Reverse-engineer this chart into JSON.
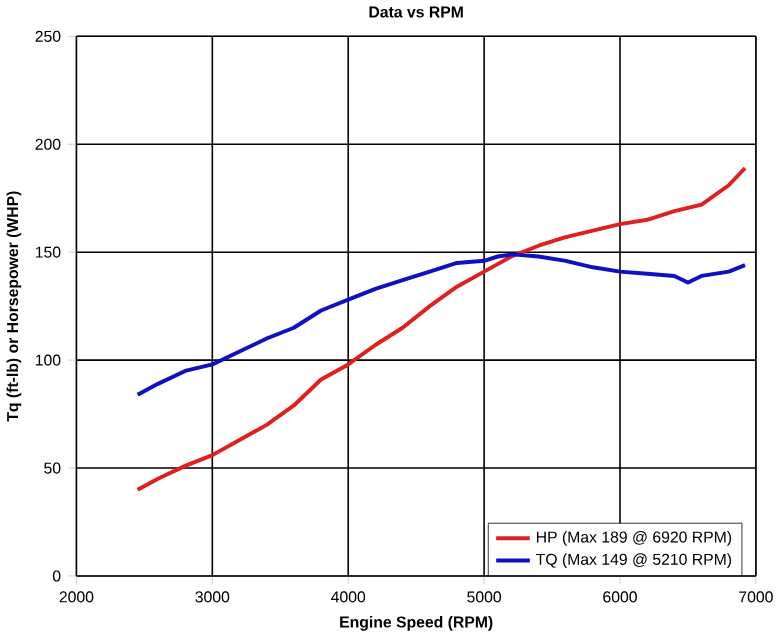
{
  "chart_data": {
    "type": "line",
    "title": "Data vs RPM",
    "xlabel": "Engine Speed (RPM)",
    "ylabel": "Tq (ft-lb) or Horsepower (WHP)",
    "xlim": [
      2000,
      7000
    ],
    "xticks": [
      2000,
      3000,
      4000,
      5000,
      6000,
      7000
    ],
    "ylim": [
      0,
      250
    ],
    "yticks": [
      0,
      50,
      100,
      150,
      200,
      250
    ],
    "grid": true,
    "legend": "bottom right",
    "marker": "none",
    "line_style": "solid",
    "series": [
      {
        "name": "HP (Max 189 @ 6920 RPM)",
        "color": "#e02020",
        "x": [
          2450,
          2600,
          2800,
          3000,
          3200,
          3400,
          3600,
          3800,
          4000,
          4200,
          4400,
          4600,
          4800,
          5000,
          5200,
          5400,
          5600,
          5800,
          6000,
          6200,
          6400,
          6600,
          6800,
          6920
        ],
        "values": [
          40,
          45,
          51,
          56,
          63,
          70,
          79,
          91,
          98,
          107,
          115,
          125,
          134,
          141,
          148,
          153,
          157,
          160,
          163,
          165,
          169,
          172,
          181,
          189
        ]
      },
      {
        "name": "TQ (Max 149 @ 5210 RPM)",
        "color": "#1010c0",
        "x": [
          2450,
          2600,
          2800,
          3000,
          3200,
          3400,
          3600,
          3800,
          4000,
          4200,
          4400,
          4600,
          4800,
          5000,
          5100,
          5210,
          5400,
          5600,
          5800,
          6000,
          6200,
          6400,
          6500,
          6600,
          6800,
          6920
        ],
        "values": [
          84,
          89,
          95,
          98,
          104,
          110,
          115,
          123,
          128,
          133,
          137,
          141,
          145,
          146,
          148,
          149,
          148,
          146,
          143,
          141,
          140,
          139,
          136,
          139,
          141,
          144
        ]
      }
    ]
  }
}
